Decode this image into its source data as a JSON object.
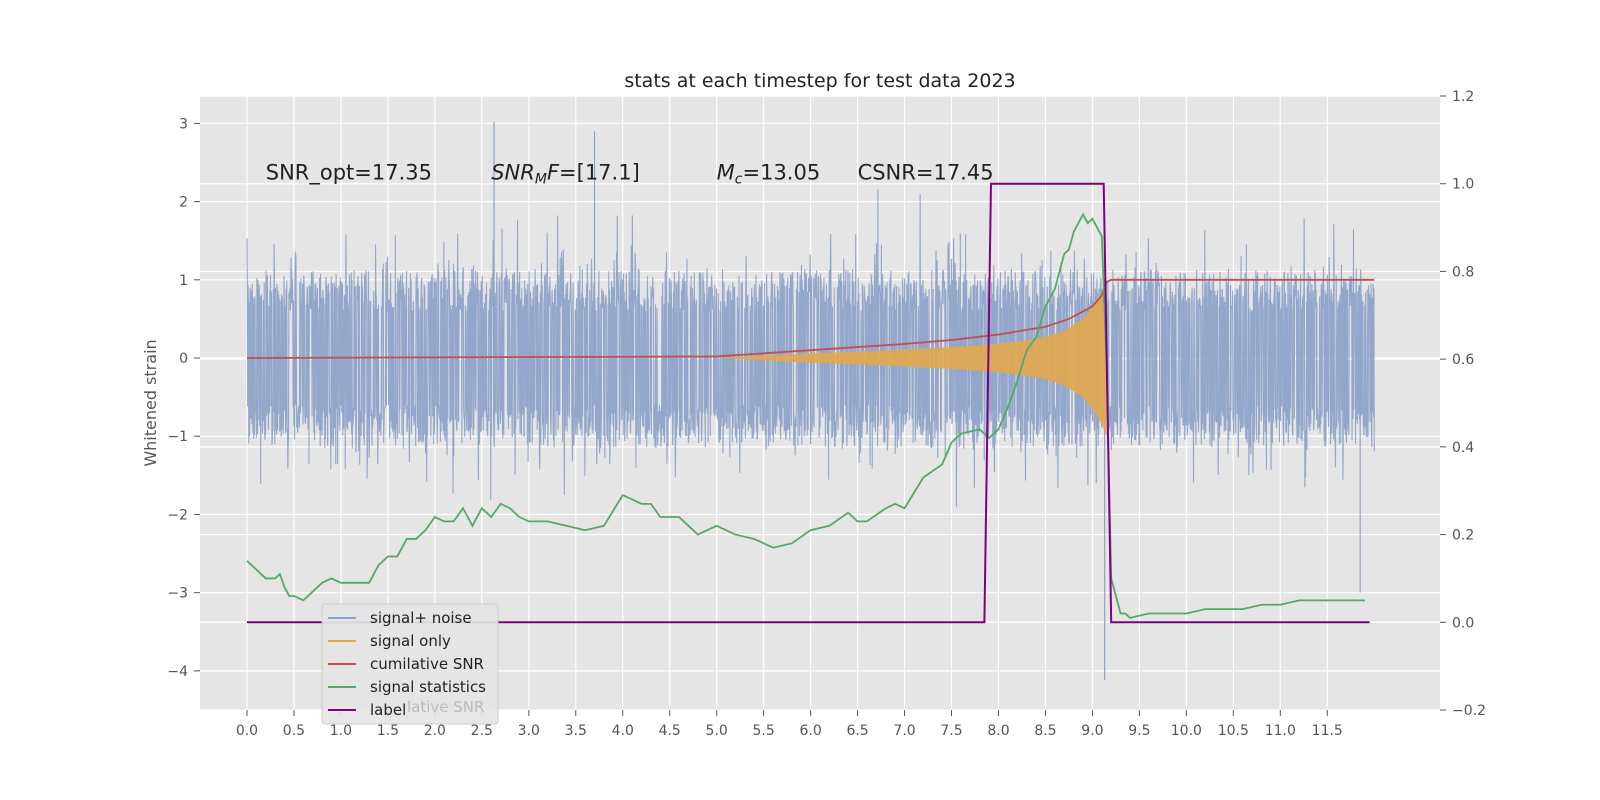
{
  "chart_data": {
    "type": "line",
    "title": "stats at each timestep for test data 2023",
    "ylabel": "Whitened strain",
    "xlabel": "",
    "xlim": [
      -0.5,
      12.7
    ],
    "ylim": [
      -4.5,
      3.35
    ],
    "y2lim": [
      -0.2,
      1.2
    ],
    "grid": true,
    "xticks": [
      "0.0",
      "0.5",
      "1.0",
      "1.5",
      "2.0",
      "2.5",
      "3.0",
      "3.5",
      "4.0",
      "4.5",
      "5.0",
      "5.5",
      "6.0",
      "6.5",
      "7.0",
      "7.5",
      "8.0",
      "8.5",
      "9.0",
      "9.5",
      "10.0",
      "10.5",
      "11.0",
      "11.5"
    ],
    "yticks": [
      "3",
      "2",
      "1",
      "0",
      "−1",
      "−2",
      "−3",
      "−4"
    ],
    "y2ticks": [
      "1.2",
      "1.0",
      "0.8",
      "0.6",
      "0.4",
      "0.2",
      "0.0",
      "−0.2"
    ],
    "annotations": [
      {
        "text": "SNR_opt=17.35",
        "x": 0.2,
        "y": 2.28
      },
      {
        "text": "SNR_MF=[17.1]",
        "parts": [
          "SNR",
          "M",
          "F=[17.1]"
        ],
        "x": 2.6,
        "y": 2.28
      },
      {
        "text": "M_c=13.05",
        "parts": [
          "M",
          "c",
          "=13.05"
        ],
        "x": 5.0,
        "y": 2.28
      },
      {
        "text": "CSNR=17.45",
        "x": 6.5,
        "y": 2.28
      }
    ],
    "legend": {
      "position": "lower-left",
      "entries": [
        "signal+ noise",
        "signal only",
        "cumilative SNR",
        "signal statistics",
        "label"
      ],
      "ghost_text": "lative SNR"
    },
    "series": [
      {
        "name": "signal+ noise",
        "color": "#8ea3c9",
        "axis": "left",
        "x_range": [
          0.0,
          12.0
        ],
        "band_low": -1.2,
        "band_high": 1.2,
        "peak_max": 3.02,
        "peak_min": -4.12
      },
      {
        "name": "signal only",
        "color": "#dfa84e",
        "axis": "left",
        "x": [
          5.0,
          5.5,
          6.0,
          6.5,
          7.0,
          7.5,
          7.9,
          8.2,
          8.5,
          8.7,
          8.9,
          9.0,
          9.1,
          9.15
        ],
        "amp": [
          0.0,
          0.03,
          0.06,
          0.08,
          0.11,
          0.14,
          0.17,
          0.21,
          0.27,
          0.35,
          0.5,
          0.65,
          0.85,
          1.0
        ]
      },
      {
        "name": "cumilative SNR",
        "color": "#c44e52",
        "axis": "left",
        "x": [
          0.0,
          5.0,
          5.5,
          6.0,
          6.5,
          7.0,
          7.5,
          8.0,
          8.5,
          8.75,
          9.0,
          9.1,
          9.15,
          9.2,
          12.0
        ],
        "y": [
          0.0,
          0.02,
          0.06,
          0.1,
          0.14,
          0.18,
          0.23,
          0.3,
          0.4,
          0.5,
          0.66,
          0.8,
          0.97,
          1.0,
          1.0
        ]
      },
      {
        "name": "signal statistics",
        "color": "#55a868",
        "axis": "right",
        "x": [
          0.0,
          0.1,
          0.15,
          0.2,
          0.3,
          0.35,
          0.4,
          0.45,
          0.5,
          0.6,
          0.7,
          0.8,
          0.9,
          1.0,
          1.1,
          1.2,
          1.3,
          1.4,
          1.5,
          1.6,
          1.7,
          1.8,
          1.9,
          2.0,
          2.1,
          2.2,
          2.3,
          2.4,
          2.5,
          2.6,
          2.7,
          2.8,
          2.9,
          3.0,
          3.2,
          3.4,
          3.6,
          3.8,
          4.0,
          4.1,
          4.2,
          4.3,
          4.4,
          4.6,
          4.8,
          5.0,
          5.2,
          5.4,
          5.5,
          5.6,
          5.8,
          6.0,
          6.2,
          6.4,
          6.5,
          6.6,
          6.8,
          6.9,
          7.0,
          7.2,
          7.4,
          7.5,
          7.6,
          7.8,
          7.9,
          8.0,
          8.1,
          8.2,
          8.3,
          8.4,
          8.5,
          8.6,
          8.7,
          8.75,
          8.8,
          8.9,
          8.95,
          9.0,
          9.1,
          9.15,
          9.2,
          9.25,
          9.3,
          9.35,
          9.4,
          9.6,
          9.8,
          10.0,
          10.2,
          10.4,
          10.6,
          10.8,
          11.0,
          11.2,
          11.4,
          11.6,
          11.8,
          11.9
        ],
        "y": [
          0.14,
          0.12,
          0.11,
          0.1,
          0.1,
          0.11,
          0.08,
          0.06,
          0.06,
          0.05,
          0.07,
          0.09,
          0.1,
          0.09,
          0.09,
          0.09,
          0.09,
          0.13,
          0.15,
          0.15,
          0.19,
          0.19,
          0.21,
          0.24,
          0.23,
          0.23,
          0.26,
          0.22,
          0.26,
          0.24,
          0.27,
          0.26,
          0.24,
          0.23,
          0.23,
          0.22,
          0.21,
          0.22,
          0.29,
          0.28,
          0.27,
          0.27,
          0.24,
          0.24,
          0.2,
          0.22,
          0.2,
          0.19,
          0.18,
          0.17,
          0.18,
          0.21,
          0.22,
          0.25,
          0.23,
          0.23,
          0.26,
          0.27,
          0.26,
          0.33,
          0.36,
          0.41,
          0.43,
          0.44,
          0.42,
          0.44,
          0.49,
          0.55,
          0.62,
          0.65,
          0.72,
          0.76,
          0.84,
          0.85,
          0.89,
          0.93,
          0.91,
          0.92,
          0.88,
          0.59,
          0.1,
          0.06,
          0.02,
          0.02,
          0.01,
          0.02,
          0.02,
          0.02,
          0.03,
          0.03,
          0.03,
          0.04,
          0.04,
          0.05,
          0.05,
          0.05,
          0.05,
          0.05
        ]
      },
      {
        "name": "label",
        "color": "#800080",
        "axis": "right",
        "x": [
          0.0,
          7.85,
          7.92,
          9.12,
          9.2,
          11.95
        ],
        "y": [
          0.0,
          0.0,
          1.0,
          1.0,
          0.0,
          0.0
        ]
      }
    ]
  }
}
